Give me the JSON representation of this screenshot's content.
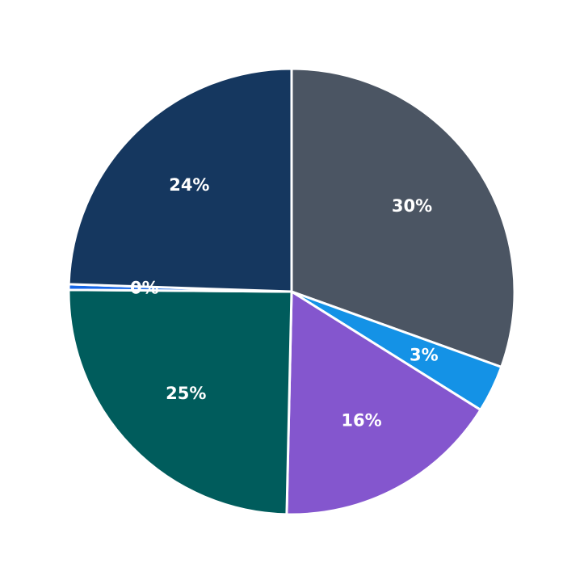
{
  "chart_data": {
    "type": "pie",
    "values": [
      30.4,
      3.4,
      16.4,
      24.7,
      0.4,
      24.4
    ],
    "value_labels": [
      "30%",
      "3%",
      "16%",
      "25%",
      "0%",
      "24%"
    ],
    "colors": [
      "#4b5563",
      "#1492e6",
      "#8456ce",
      "#005c5c",
      "#1565e6",
      "#15375f"
    ]
  }
}
